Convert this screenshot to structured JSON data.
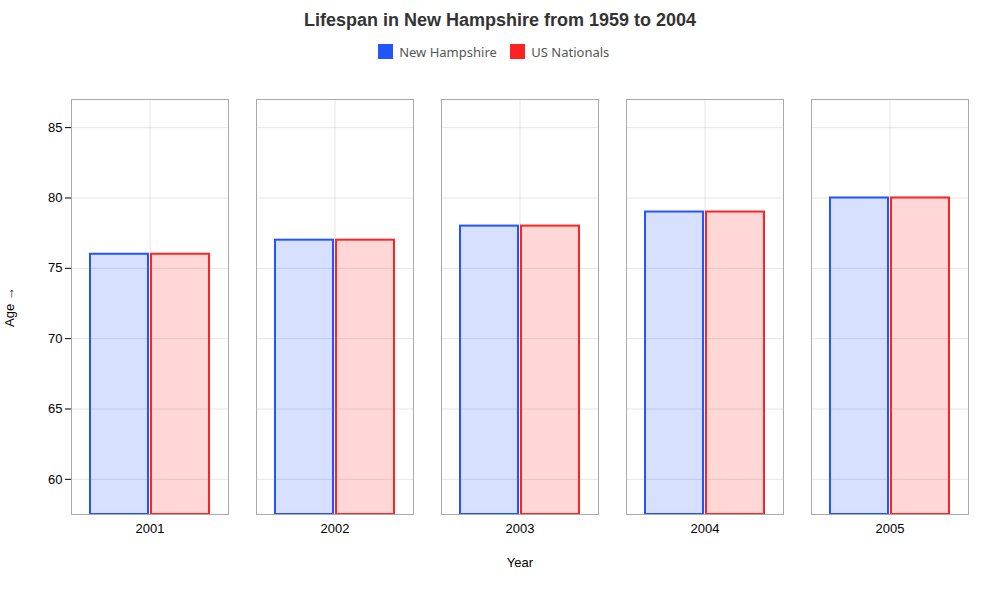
{
  "chart_data": {
    "type": "bar",
    "title": "Lifespan in New Hampshire from 1959 to 2004",
    "x_label": "Year",
    "y_label": "Age",
    "categories": [
      "2001",
      "2002",
      "2003",
      "2004",
      "2005"
    ],
    "series": [
      {
        "name": "New Hampshire",
        "color": "#2255ff",
        "values": [
          76,
          77,
          78,
          79,
          80
        ]
      },
      {
        "name": "US Nationals",
        "color": "#ff2222",
        "values": [
          76,
          77,
          78,
          79,
          80
        ]
      }
    ],
    "ylim": [
      57.5,
      87
    ],
    "yticks": [
      60,
      65,
      70,
      75,
      80,
      85
    ],
    "grid": true,
    "legend": "top"
  }
}
